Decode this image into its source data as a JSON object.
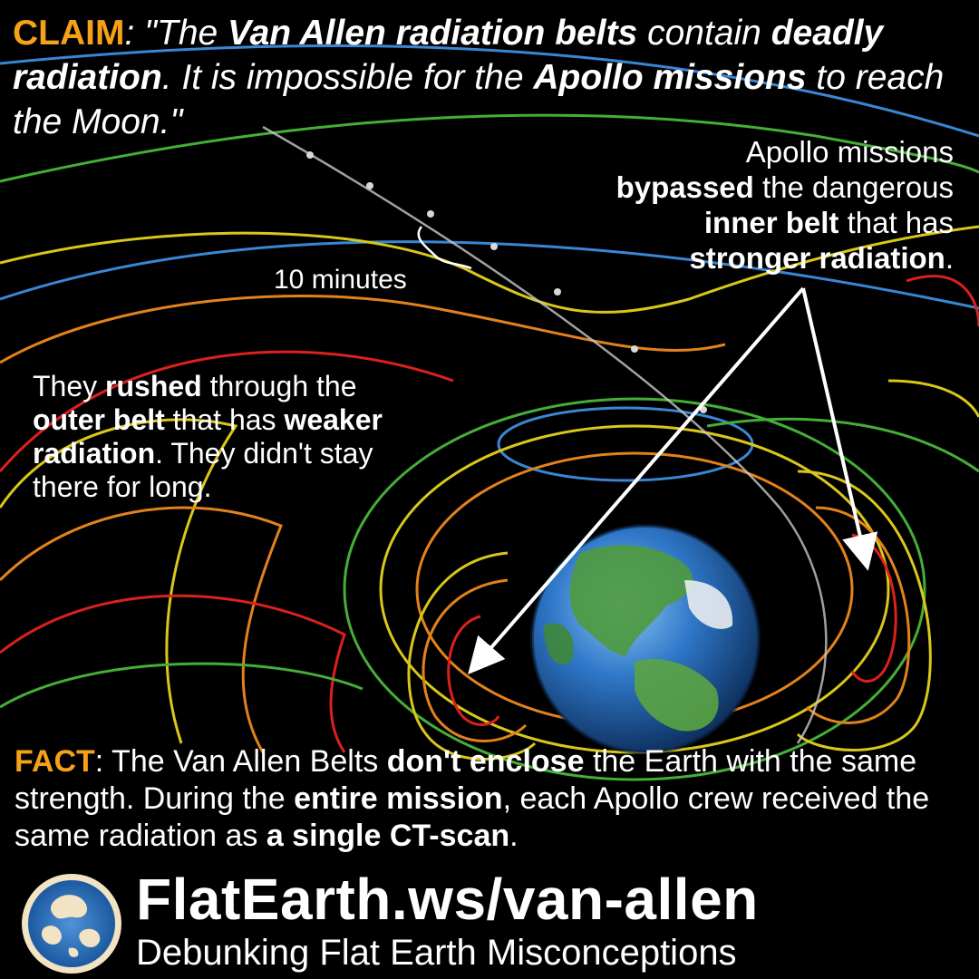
{
  "claim": {
    "label": "CLAIM",
    "p1": ": \"The ",
    "b1": "Van Allen radiation belts",
    "p2": " contain ",
    "b2": "deadly radiation",
    "p3": ". It is impossible for the ",
    "b3": "Apollo missions",
    "p4": " to reach the Moon.\""
  },
  "bypass": {
    "p1": "Apollo missions",
    "b1": "bypassed",
    "p2": " the dangerous",
    "b2": "inner belt",
    "p3": " that has",
    "b3": "stronger radiation",
    "p4": "."
  },
  "ten_minutes": "10 minutes",
  "rushed": {
    "p1": "They ",
    "b1": "rushed",
    "p2": " through the ",
    "b2": "outer belt",
    "p3": " that has ",
    "b3": "weaker radiation",
    "p4": ". They didn't stay there for long."
  },
  "fact": {
    "label": "FACT",
    "p1": ": The Van Allen Belts ",
    "b1": "don't enclose",
    "p2": " the Earth with the same strength. During the ",
    "b2": "entire mission",
    "p3": ", each Apollo crew received the same radiation as ",
    "b3": "a single CT-scan",
    "p4": "."
  },
  "footer": {
    "site": "FlatEarth.ws/van-allen",
    "tagline": "Debunking Flat Earth Misconceptions"
  },
  "colors": {
    "claim_label": "#f5a11a",
    "belt_red": "#e8231f",
    "belt_orange": "#f08a1e",
    "belt_yellow": "#e6d21c",
    "belt_green": "#49b83a",
    "belt_blue": "#3d8fe0",
    "ocean": "#2f78c9"
  },
  "icons": [
    "earth-globe",
    "flat-earth-logo",
    "arrow",
    "tilde-squiggle"
  ]
}
